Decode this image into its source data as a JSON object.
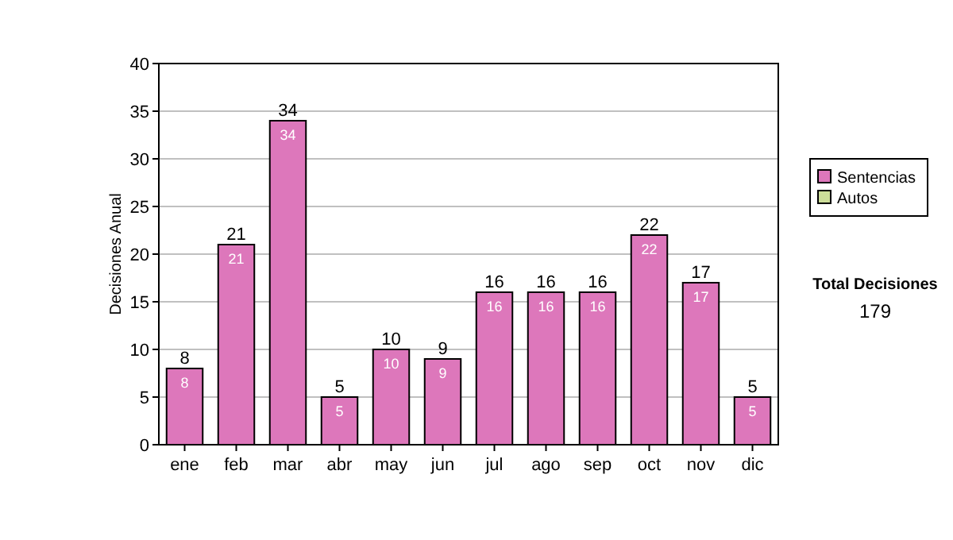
{
  "chart_data": {
    "type": "bar",
    "ylabel": "Decisiones Anual",
    "categories": [
      "ene",
      "feb",
      "mar",
      "abr",
      "may",
      "jun",
      "jul",
      "ago",
      "sep",
      "oct",
      "nov",
      "dic"
    ],
    "series": [
      {
        "name": "Sentencias",
        "color": "#dd77bb",
        "values": [
          8,
          21,
          34,
          5,
          10,
          9,
          16,
          16,
          16,
          22,
          17,
          5
        ],
        "value_labels": [
          "8",
          "21",
          "34",
          "5",
          "10",
          "9",
          "16",
          "16",
          "16",
          "22",
          "17",
          "5"
        ]
      },
      {
        "name": "Autos",
        "color": "#ccdd99",
        "values": [
          0,
          0,
          0,
          0,
          0,
          0,
          0,
          0,
          0,
          0,
          0,
          0
        ]
      }
    ],
    "totals": [
      "8",
      "21",
      "34",
      "5",
      "10",
      "9",
      "16",
      "16",
      "16",
      "22",
      "17",
      "5"
    ],
    "ylim": [
      0,
      40
    ],
    "yticks": [
      0,
      5,
      10,
      15,
      20,
      25,
      30,
      35,
      40
    ],
    "grid": "y",
    "legend": "right",
    "annotations": [
      "Total Decisiones",
      "179"
    ]
  }
}
